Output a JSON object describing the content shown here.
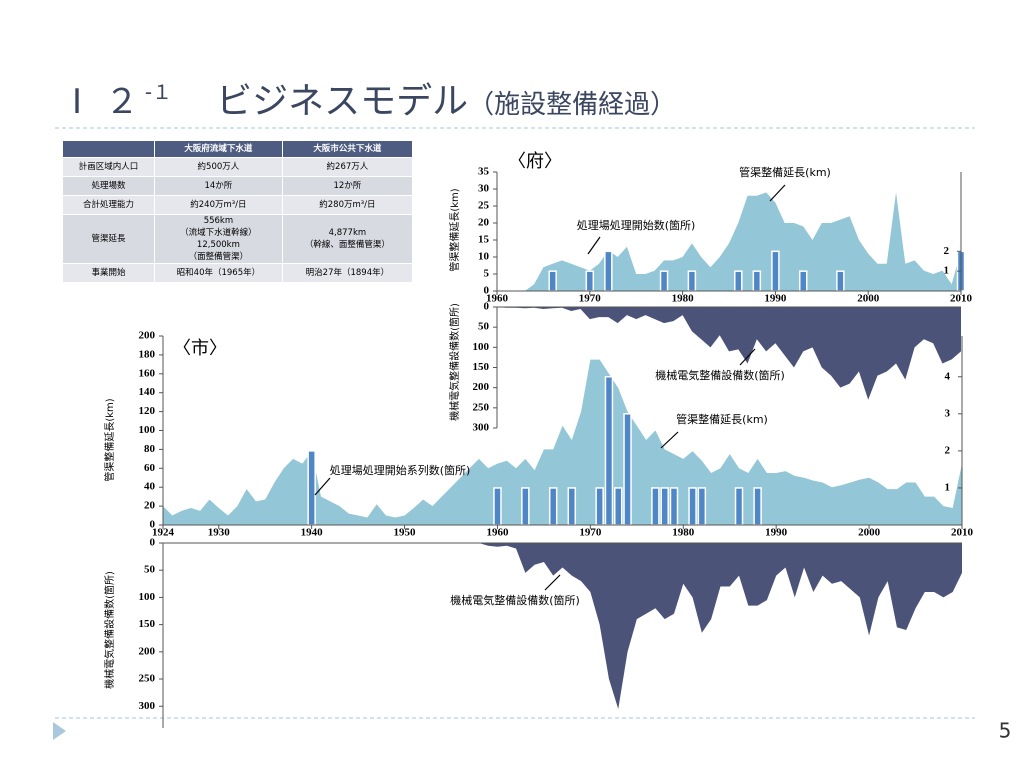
{
  "title": {
    "number": "Ⅰ ２",
    "sup": "-１",
    "main": "ビジネスモデル",
    "sub": "（施設整備経過）"
  },
  "page_number": "5",
  "table": {
    "header": [
      "大阪府流域下水道",
      "大阪市公共下水道"
    ],
    "rows": [
      [
        "計画区域内人口",
        [
          "約500万人"
        ],
        [
          "約267万人"
        ]
      ],
      [
        "処理場数",
        [
          "14か所"
        ],
        [
          "12か所"
        ]
      ],
      [
        "合計処理能力",
        [
          "約240万m³/日"
        ],
        [
          "約280万m³/日"
        ]
      ],
      [
        "管渠延長",
        [
          "556km",
          "（流域下水道幹線）",
          "12,500km",
          "（面整備管渠）"
        ],
        [
          "4,877km",
          "（幹線、面整備管渠）"
        ]
      ],
      [
        "事業開始",
        [
          "昭和40年（1965年）"
        ],
        [
          "明治27年（1894年）"
        ]
      ]
    ]
  },
  "chart_data": [
    {
      "type": "area",
      "title": "〈府〉",
      "y_label": "管渠整備延長(km)",
      "xlim": [
        1960,
        2010
      ],
      "xticks": [
        1960,
        1970,
        1980,
        1990,
        2000,
        2010
      ],
      "ylim": [
        0,
        35
      ],
      "yticks": [
        0,
        5,
        10,
        15,
        20,
        25,
        30,
        35
      ],
      "y2lim": [
        0,
        6
      ],
      "y2ticks": [
        1,
        2
      ],
      "series": [
        {
          "name": "管渠整備延長(km)",
          "color": "#93c6d6",
          "x": [
            1960,
            1961,
            1962,
            1963,
            1964,
            1965,
            1966,
            1967,
            1968,
            1969,
            1970,
            1971,
            1972,
            1973,
            1974,
            1975,
            1976,
            1977,
            1978,
            1979,
            1980,
            1981,
            1982,
            1983,
            1984,
            1985,
            1986,
            1987,
            1988,
            1989,
            1990,
            1991,
            1992,
            1993,
            1994,
            1995,
            1996,
            1997,
            1998,
            1999,
            2000,
            2001,
            2002,
            2003,
            2004,
            2005,
            2006,
            2007,
            2008,
            2009,
            2010
          ],
          "values": [
            0,
            0,
            0,
            0,
            2,
            7,
            8,
            9,
            8,
            7,
            6,
            8,
            12,
            10,
            13,
            5,
            5,
            6,
            9,
            9,
            10,
            14,
            10,
            7,
            10,
            14,
            20,
            28,
            28,
            29,
            26,
            20,
            20,
            19,
            15,
            20,
            20,
            21,
            22,
            15,
            11,
            8,
            8,
            29,
            8,
            9,
            6,
            5,
            6,
            2,
            12
          ]
        },
        {
          "name": "処理場処理開始数(箇所)",
          "type": "bar",
          "axis": "y2",
          "color": "#4f86c6",
          "x": [
            1966,
            1970,
            1972,
            1978,
            1981,
            1986,
            1988,
            1990,
            1993,
            1997,
            2010
          ],
          "values": [
            1,
            1,
            2,
            1,
            1,
            1,
            1,
            2,
            1,
            1,
            2
          ]
        }
      ]
    },
    {
      "type": "area",
      "y_label": "機械電気整備設備数(箇所)",
      "invert": true,
      "xlim": [
        1960,
        2010
      ],
      "ylim": [
        0,
        300
      ],
      "yticks": [
        0,
        50,
        100,
        150,
        200,
        250,
        300
      ],
      "series": [
        {
          "name": "機械電気整備設備数(箇所)",
          "color": "#4b5478",
          "x": [
            1960,
            1961,
            1962,
            1963,
            1964,
            1965,
            1966,
            1967,
            1968,
            1969,
            1970,
            1971,
            1972,
            1973,
            1974,
            1975,
            1976,
            1977,
            1978,
            1979,
            1980,
            1981,
            1982,
            1983,
            1984,
            1985,
            1986,
            1987,
            1988,
            1989,
            1990,
            1991,
            1992,
            1993,
            1994,
            1995,
            1996,
            1997,
            1998,
            1999,
            2000,
            2001,
            2002,
            2003,
            2004,
            2005,
            2006,
            2007,
            2008,
            2009,
            2010
          ],
          "values": [
            0,
            2,
            2,
            3,
            2,
            5,
            3,
            2,
            10,
            5,
            30,
            25,
            25,
            40,
            20,
            30,
            20,
            30,
            40,
            35,
            20,
            60,
            80,
            100,
            70,
            110,
            105,
            140,
            80,
            110,
            90,
            120,
            150,
            110,
            100,
            150,
            170,
            200,
            190,
            160,
            230,
            170,
            160,
            140,
            180,
            100,
            80,
            90,
            140,
            130,
            110
          ]
        }
      ]
    },
    {
      "type": "area",
      "title": "〈市〉",
      "y_label": "管渠整備延長(km)",
      "xlim": [
        1924,
        2010
      ],
      "xticks": [
        1924,
        1930,
        1940,
        1950,
        1960,
        1970,
        1980,
        1990,
        2000,
        2010
      ],
      "ylim": [
        0,
        200
      ],
      "yticks": [
        0,
        20,
        40,
        60,
        80,
        100,
        120,
        140,
        160,
        180,
        200
      ],
      "y2lim": [
        0,
        5.1
      ],
      "y2ticks": [
        1,
        2,
        3,
        4
      ],
      "series": [
        {
          "name": "管渠整備延長(km)",
          "color": "#93c6d6",
          "x": [
            1924,
            1925,
            1926,
            1927,
            1928,
            1929,
            1930,
            1931,
            1932,
            1933,
            1934,
            1935,
            1936,
            1937,
            1938,
            1939,
            1940,
            1941,
            1942,
            1943,
            1944,
            1945,
            1946,
            1947,
            1948,
            1949,
            1950,
            1951,
            1952,
            1953,
            1954,
            1955,
            1956,
            1957,
            1958,
            1959,
            1960,
            1961,
            1962,
            1963,
            1964,
            1965,
            1966,
            1967,
            1968,
            1969,
            1970,
            1971,
            1972,
            1973,
            1974,
            1975,
            1976,
            1977,
            1978,
            1979,
            1980,
            1981,
            1982,
            1983,
            1984,
            1985,
            1986,
            1987,
            1988,
            1989,
            1990,
            1991,
            1992,
            1993,
            1994,
            1995,
            1996,
            1997,
            1998,
            1999,
            2000,
            2001,
            2002,
            2003,
            2004,
            2005,
            2006,
            2007,
            2008,
            2009,
            2010
          ],
          "values": [
            20,
            10,
            15,
            18,
            15,
            27,
            18,
            10,
            20,
            38,
            25,
            27,
            45,
            60,
            70,
            65,
            78,
            30,
            25,
            20,
            12,
            10,
            8,
            22,
            10,
            8,
            10,
            18,
            27,
            20,
            30,
            40,
            50,
            60,
            70,
            60,
            65,
            68,
            60,
            70,
            58,
            80,
            80,
            105,
            90,
            120,
            175,
            175,
            160,
            145,
            120,
            105,
            90,
            100,
            80,
            75,
            70,
            78,
            68,
            55,
            60,
            75,
            60,
            55,
            70,
            55,
            55,
            57,
            52,
            50,
            47,
            45,
            40,
            42,
            45,
            48,
            50,
            45,
            38,
            38,
            45,
            45,
            30,
            30,
            20,
            18,
            65
          ]
        },
        {
          "name": "処理場処理開始系列数(箇所)",
          "type": "bar",
          "axis": "y2",
          "color": "#4f86c6",
          "x": [
            1940,
            1960,
            1963,
            1966,
            1968,
            1971,
            1972,
            1973,
            1974,
            1977,
            1978,
            1979,
            1981,
            1982,
            1986,
            1988
          ],
          "values": [
            2,
            1,
            1,
            1,
            1,
            1,
            4,
            1,
            3,
            1,
            1,
            1,
            1,
            1,
            1,
            1
          ]
        }
      ]
    },
    {
      "type": "area",
      "y_label": "機械電気整備設備数(箇所)",
      "invert": true,
      "xlim": [
        1924,
        2010
      ],
      "ylim": [
        0,
        340
      ],
      "yticks": [
        0,
        50,
        100,
        150,
        200,
        250,
        300
      ],
      "series": [
        {
          "name": "機械電気整備設備数(箇所)",
          "color": "#4b5478",
          "x": [
            1958,
            1959,
            1960,
            1961,
            1962,
            1963,
            1964,
            1965,
            1966,
            1967,
            1968,
            1969,
            1970,
            1971,
            1972,
            1973,
            1974,
            1975,
            1976,
            1977,
            1978,
            1979,
            1980,
            1981,
            1982,
            1983,
            1984,
            1985,
            1986,
            1987,
            1988,
            1989,
            1990,
            1991,
            1992,
            1993,
            1994,
            1995,
            1996,
            1997,
            1998,
            1999,
            2000,
            2001,
            2002,
            2003,
            2004,
            2005,
            2006,
            2007,
            2008,
            2009,
            2010
          ],
          "values": [
            0,
            5,
            7,
            5,
            10,
            55,
            40,
            35,
            60,
            45,
            60,
            70,
            90,
            150,
            250,
            305,
            200,
            140,
            130,
            120,
            140,
            130,
            75,
            100,
            165,
            140,
            80,
            80,
            60,
            115,
            115,
            105,
            60,
            45,
            100,
            45,
            90,
            60,
            75,
            70,
            85,
            100,
            170,
            100,
            70,
            155,
            160,
            120,
            90,
            90,
            100,
            90,
            55
          ]
        }
      ]
    }
  ]
}
